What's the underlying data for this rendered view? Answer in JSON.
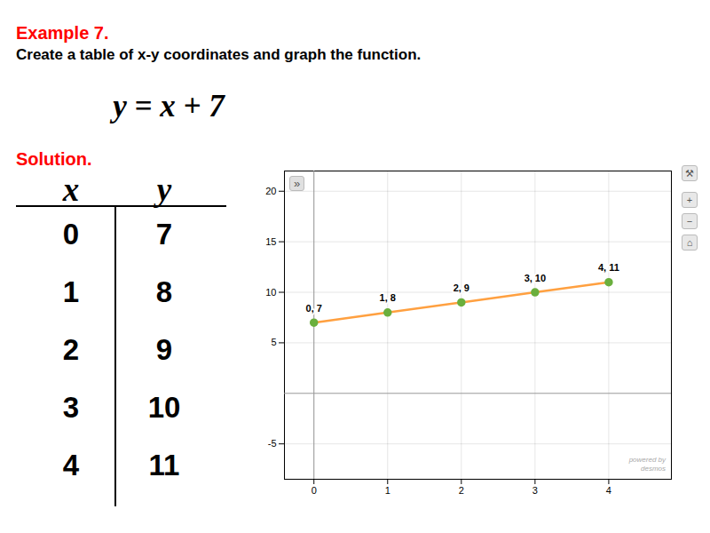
{
  "chart_data": {
    "type": "scatter",
    "title": "Example 7.",
    "subtitle": "Create a table of x-y coordinates and graph the function.",
    "annotations": {
      "equation": "y = x + 7",
      "solution": "Solution.",
      "table_headers": [
        "x",
        "y"
      ],
      "collapse": "»",
      "toolbar": [
        "⚒",
        "+",
        "−",
        "⌂"
      ],
      "watermark": [
        "powered by",
        "desmos"
      ]
    },
    "x": [
      0,
      1,
      2,
      3,
      4
    ],
    "series": [
      {
        "type": "line",
        "color": "#FFA040",
        "values": [
          7,
          8,
          9,
          10,
          11
        ]
      },
      {
        "type": "scatter",
        "color": "#6AAF3D",
        "values": [
          7,
          8,
          9,
          10,
          11
        ],
        "value_labels": [
          "0, 7",
          "1, 8",
          "2, 9",
          "3, 10",
          "4, 11"
        ]
      }
    ],
    "xlim": [
      -0.4,
      4.85
    ],
    "xticks": [
      0,
      1,
      2,
      3,
      4
    ],
    "ylim": [
      -8.5,
      22
    ],
    "yticks": [
      -5,
      5,
      10,
      15,
      20
    ],
    "grid": true,
    "data_labels": true
  }
}
